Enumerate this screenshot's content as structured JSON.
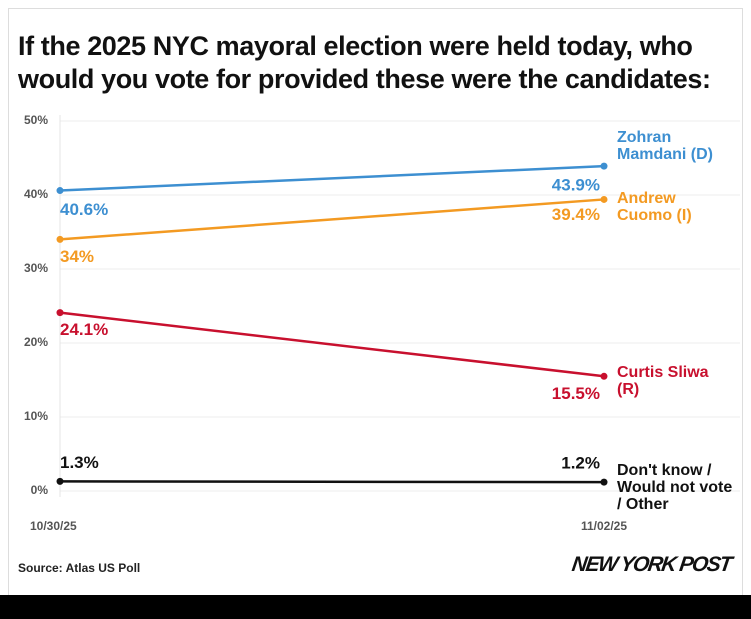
{
  "chart_data": {
    "type": "line",
    "title": "If the 2025 NYC mayoral election were held today, who would you vote for provided these were the candidates:",
    "categories": [
      "10/30/25",
      "11/02/25"
    ],
    "series": [
      {
        "name": "Zohran Mamdani (D)",
        "color": "#3d8fd1",
        "values": [
          40.6,
          43.9
        ],
        "value_labels": [
          "40.6%",
          "43.9%"
        ]
      },
      {
        "name": "Andrew Cuomo (I)",
        "color": "#f39a22",
        "values": [
          34,
          39.4
        ],
        "value_labels": [
          "34%",
          "39.4%"
        ]
      },
      {
        "name": "Curtis Sliwa (R)",
        "color": "#c8102e",
        "values": [
          24.1,
          15.5
        ],
        "value_labels": [
          "24.1%",
          "15.5%"
        ]
      },
      {
        "name": "Don't know / Would not vote / Other",
        "color": "#111111",
        "values": [
          1.3,
          1.2
        ],
        "value_labels": [
          "1.3%",
          "1.2%"
        ]
      }
    ],
    "ylim": [
      0,
      50
    ],
    "yticks": [
      {
        "value": 0,
        "label": "0%"
      },
      {
        "value": 10,
        "label": "10%"
      },
      {
        "value": 20,
        "label": "20%"
      },
      {
        "value": 30,
        "label": "30%"
      },
      {
        "value": 40,
        "label": "40%"
      },
      {
        "value": 50,
        "label": "50%"
      }
    ],
    "grid": true,
    "source": "Source: Atlas US Poll",
    "logo": "NEW YORK POST"
  }
}
